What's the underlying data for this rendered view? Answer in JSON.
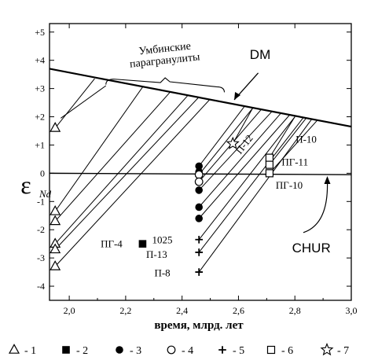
{
  "chart_data": {
    "type": "scatter",
    "xlabel": "время, млрд. лет",
    "ylabel": {
      "main": "ε",
      "sub": "Nd"
    },
    "xlim": [
      1.93,
      3.0
    ],
    "ylim": [
      -4.5,
      5.3
    ],
    "x_ticks": [
      2.0,
      2.2,
      2.4,
      2.6,
      2.8,
      3.0
    ],
    "x_tick_labels": [
      "2,0",
      "2,2",
      "2,4",
      "2,6",
      "2,8",
      "3,0"
    ],
    "y_ticks": [
      5,
      4,
      3,
      2,
      1,
      0,
      -1,
      -2,
      -3,
      -4
    ],
    "y_tick_labels": [
      "+5",
      "+4",
      "+3",
      "+2",
      "+1",
      "0",
      "-1",
      "-2",
      "-3",
      "-4"
    ],
    "reference_lines": [
      {
        "name": "DM",
        "x": [
          1.93,
          3.0
        ],
        "y": [
          3.7,
          1.65
        ]
      },
      {
        "name": "CHUR",
        "x": [
          1.93,
          3.0
        ],
        "y": [
          0,
          -0.05
        ]
      }
    ],
    "evolution_lines": [
      {
        "x": [
          1.95,
          2.09
        ],
        "y": [
          1.6,
          3.35
        ]
      },
      {
        "x": [
          1.95,
          2.26
        ],
        "y": [
          -1.35,
          3.05
        ]
      },
      {
        "x": [
          1.95,
          2.36
        ],
        "y": [
          -1.7,
          2.9
        ]
      },
      {
        "x": [
          1.95,
          2.42
        ],
        "y": [
          -2.5,
          2.75
        ]
      },
      {
        "x": [
          1.95,
          2.46
        ],
        "y": [
          -2.7,
          2.7
        ]
      },
      {
        "x": [
          1.95,
          2.5
        ],
        "y": [
          -3.3,
          2.63
        ]
      },
      {
        "x": [
          2.46,
          2.62
        ],
        "y": [
          0.25,
          2.35
        ]
      },
      {
        "x": [
          2.46,
          2.65
        ],
        "y": [
          -0.05,
          2.3
        ]
      },
      {
        "x": [
          2.46,
          2.68
        ],
        "y": [
          -0.3,
          2.25
        ]
      },
      {
        "x": [
          2.46,
          2.72
        ],
        "y": [
          -0.6,
          2.2
        ]
      },
      {
        "x": [
          2.46,
          2.75
        ],
        "y": [
          -1.2,
          2.12
        ]
      },
      {
        "x": [
          2.46,
          2.78
        ],
        "y": [
          -1.6,
          2.05
        ]
      },
      {
        "x": [
          2.46,
          2.8
        ],
        "y": [
          -2.35,
          2.0
        ]
      },
      {
        "x": [
          2.46,
          2.83
        ],
        "y": [
          -2.8,
          1.97
        ]
      },
      {
        "x": [
          2.46,
          2.86
        ],
        "y": [
          -3.5,
          1.92
        ]
      },
      {
        "x": [
          2.58,
          2.65
        ],
        "y": [
          1.05,
          2.3
        ]
      },
      {
        "x": [
          2.71,
          2.8
        ],
        "y": [
          0.55,
          2.0
        ]
      },
      {
        "x": [
          2.71,
          2.84
        ],
        "y": [
          0.3,
          1.95
        ]
      },
      {
        "x": [
          2.71,
          2.88
        ],
        "y": [
          0.0,
          1.88
        ]
      }
    ],
    "series": [
      {
        "name": "1",
        "marker": "triangle-open",
        "points": [
          [
            1.95,
            1.6
          ],
          [
            1.95,
            -1.35
          ],
          [
            1.95,
            -1.7
          ],
          [
            1.95,
            -2.5
          ],
          [
            1.95,
            -2.7
          ],
          [
            1.95,
            -3.3
          ]
        ]
      },
      {
        "name": "2",
        "marker": "square-filled",
        "points": [
          [
            2.26,
            -2.5
          ]
        ]
      },
      {
        "name": "3",
        "marker": "circle-filled",
        "points": [
          [
            2.46,
            0.25
          ],
          [
            2.46,
            0.05
          ],
          [
            2.46,
            -0.6
          ],
          [
            2.46,
            -1.2
          ],
          [
            2.46,
            -1.6
          ]
        ]
      },
      {
        "name": "4",
        "marker": "circle-open",
        "points": [
          [
            2.46,
            -0.05
          ],
          [
            2.46,
            -0.3
          ]
        ]
      },
      {
        "name": "5",
        "marker": "plus",
        "points": [
          [
            2.46,
            -2.35
          ],
          [
            2.46,
            -2.8
          ],
          [
            2.46,
            -3.5
          ]
        ]
      },
      {
        "name": "6",
        "marker": "square-open",
        "points": [
          [
            2.71,
            0.55
          ],
          [
            2.71,
            0.3
          ],
          [
            2.71,
            0.0
          ]
        ]
      },
      {
        "name": "7",
        "marker": "star-open",
        "points": [
          [
            2.58,
            1.05
          ]
        ]
      }
    ],
    "annotations": [
      {
        "text": "DM",
        "x": 2.64,
        "y": 4.05,
        "style": "sans-large"
      },
      {
        "text": "CHUR",
        "x": 2.79,
        "y": -2.8,
        "style": "sans-large"
      },
      {
        "text": "Умбинские",
        "x": 2.34,
        "y": 4.3,
        "style": "serif"
      },
      {
        "text": "парагранулиты",
        "x": 2.34,
        "y": 3.88,
        "style": "serif"
      },
      {
        "text": "П-12",
        "x": 2.63,
        "y": 0.95,
        "style": "serif-rotated"
      },
      {
        "text": "П-10",
        "x": 2.84,
        "y": 1.08,
        "style": "serif"
      },
      {
        "text": "ПГ-11",
        "x": 2.8,
        "y": 0.27,
        "style": "serif"
      },
      {
        "text": "ПГ-10",
        "x": 2.78,
        "y": -0.55,
        "style": "serif"
      },
      {
        "text": "ПГ-4",
        "x": 2.15,
        "y": -2.62,
        "style": "serif"
      },
      {
        "text": "1025",
        "x": 2.33,
        "y": -2.48,
        "style": "serif"
      },
      {
        "text": "П-13",
        "x": 2.31,
        "y": -3.0,
        "style": "serif"
      },
      {
        "text": "П-8",
        "x": 2.33,
        "y": -3.65,
        "style": "serif"
      }
    ],
    "legend": {
      "placement": "bottom",
      "items": [
        {
          "marker": "triangle-open",
          "label": "- 1"
        },
        {
          "marker": "square-filled",
          "label": "- 2"
        },
        {
          "marker": "circle-filled",
          "label": "- 3"
        },
        {
          "marker": "circle-open",
          "label": "- 4"
        },
        {
          "marker": "plus",
          "label": "- 5"
        },
        {
          "marker": "square-open",
          "label": "- 6"
        },
        {
          "marker": "star-open",
          "label": "- 7"
        }
      ]
    }
  }
}
